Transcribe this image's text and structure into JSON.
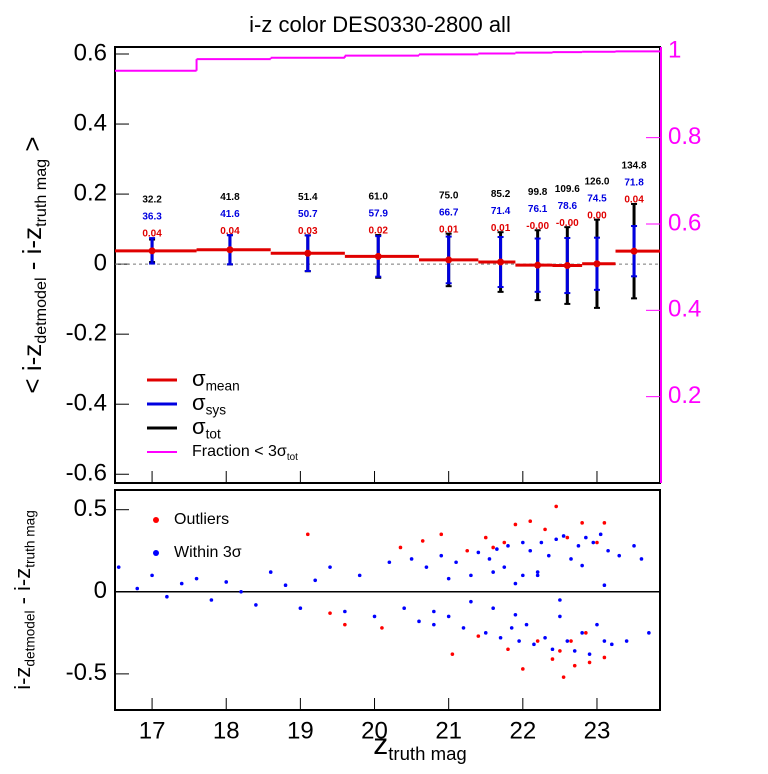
{
  "chart_data": [
    {
      "type": "binned-mean",
      "title": "i-z color DES0330-2800 all",
      "ylabel": [
        {
          "text": "< i-z"
        },
        {
          "text": "detmodel",
          "sub": true
        },
        {
          "text": " - i-z"
        },
        {
          "text": "truth mag",
          "sub": true
        },
        {
          "text": " >"
        }
      ],
      "xlim": [
        16.5,
        23.85
      ],
      "ylim": [
        -0.625,
        0.62
      ],
      "y2lim": [
        0,
        1.01
      ],
      "yticks": [
        {
          "value": 0.6,
          "label": "0.6"
        },
        {
          "value": 0.4,
          "label": "0.4"
        },
        {
          "value": 0.2,
          "label": "0.2"
        },
        0,
        {
          "value": -0.2,
          "label": "-0.2"
        },
        {
          "value": -0.4,
          "label": "-0.4"
        },
        {
          "value": -0.6,
          "label": "-0.6"
        }
      ],
      "y2ticks": [
        0.2,
        0.4,
        0.6,
        0.8,
        1
      ],
      "bin_edges": [
        16.5,
        17.6,
        18.6,
        19.6,
        20.6,
        21.4,
        21.9,
        22.4,
        22.8,
        23.25,
        23.85
      ],
      "x": [
        17.0,
        18.05,
        19.1,
        20.05,
        21.0,
        21.7,
        22.2,
        22.6,
        23.0,
        23.5
      ],
      "values": [
        0.038,
        0.041,
        0.031,
        0.022,
        0.012,
        0.006,
        -0.003,
        -0.004,
        0.001,
        0.037
      ],
      "value_labels": [
        "0.04",
        "0.04",
        "0.03",
        "0.02",
        "0.01",
        "0.01",
        "-0.00",
        "-0.00",
        "0.00",
        "0.04"
      ],
      "sys_errors": [
        0.0363,
        0.0416,
        0.0507,
        0.0579,
        0.0667,
        0.0714,
        0.0761,
        0.0786,
        0.0745,
        0.0718
      ],
      "sys_labels": [
        "36.3",
        "41.6",
        "50.7",
        "57.9",
        "66.7",
        "71.4",
        "76.1",
        "78.6",
        "74.5",
        "71.8"
      ],
      "tot_errors": [
        0.0322,
        0.0418,
        0.0514,
        0.061,
        0.075,
        0.0852,
        0.0998,
        0.1096,
        0.126,
        0.1348
      ],
      "tot_labels": [
        "32.2",
        "41.8",
        "51.4",
        "61.0",
        "75.0",
        "85.2",
        "99.8",
        "109.6",
        "126.0",
        "134.8"
      ],
      "fraction": [
        0.955,
        0.982,
        0.985,
        0.99,
        0.993,
        0.995,
        0.997,
        0.998,
        0.999,
        1.0
      ],
      "colors": {
        "mean": "#e00000",
        "sys": "#0000e0",
        "tot": "#000000",
        "fraction": "#ff00ff"
      },
      "legend": [
        [
          {
            "text": "σ"
          },
          {
            "text": "mean",
            "sub": true
          }
        ],
        [
          {
            "text": "σ"
          },
          {
            "text": "sys",
            "sub": true
          }
        ],
        [
          {
            "text": "σ"
          },
          {
            "text": "tot",
            "sub": true
          }
        ],
        [
          {
            "text": "Fraction < 3σ"
          },
          {
            "text": "tot",
            "sub": true
          }
        ]
      ]
    },
    {
      "type": "scatter",
      "ylabel": [
        {
          "text": "i-z"
        },
        {
          "text": "detmodel",
          "sub": true
        },
        {
          "text": " - i-z"
        },
        {
          "text": "truth mag",
          "sub": true
        }
      ],
      "xlabel": [
        {
          "text": "z"
        },
        {
          "text": "truth mag",
          "sub": true
        }
      ],
      "xlim": [
        16.5,
        23.85
      ],
      "ylim": [
        -0.72,
        0.62
      ],
      "xticks": [
        17,
        18,
        19,
        20,
        21,
        22,
        23
      ],
      "yticks": [
        {
          "value": 0.5,
          "label": "0.5"
        },
        0,
        {
          "value": -0.5,
          "label": "-0.5"
        }
      ],
      "series": [
        {
          "name": "Outliers",
          "color": "#ff0000",
          "x": [
            20.35,
            20.65,
            20.9,
            21.25,
            21.5,
            21.6,
            21.75,
            21.9,
            22.1,
            22.3,
            22.45,
            22.6,
            22.8,
            23.0,
            23.1,
            20.1,
            21.05,
            21.8,
            22.0,
            22.2,
            22.4,
            22.55,
            22.7,
            22.9,
            23.1,
            22.5,
            21.4,
            19.1,
            19.4,
            19.6,
            22.65,
            22.85
          ],
          "values": [
            0.27,
            0.31,
            0.35,
            0.25,
            0.33,
            0.27,
            0.3,
            0.41,
            0.43,
            0.38,
            0.52,
            0.33,
            0.42,
            0.3,
            0.42,
            -0.22,
            -0.38,
            -0.35,
            -0.47,
            -0.3,
            -0.41,
            -0.52,
            -0.45,
            -0.43,
            -0.4,
            -0.36,
            -0.27,
            0.35,
            -0.13,
            -0.2,
            -0.3,
            -0.25
          ]
        },
        {
          "name": "Within 3σ",
          "color": "#0000ff",
          "x": [
            16.55,
            16.8,
            17.0,
            17.2,
            17.4,
            17.6,
            17.8,
            18.0,
            18.2,
            18.4,
            18.6,
            18.8,
            19.0,
            19.2,
            19.4,
            19.6,
            19.8,
            20.0,
            20.2,
            20.4,
            20.5,
            20.6,
            20.7,
            20.8,
            20.9,
            21.0,
            21.1,
            21.2,
            21.3,
            21.4,
            21.5,
            21.55,
            21.6,
            21.65,
            21.7,
            21.75,
            21.8,
            21.85,
            21.9,
            21.95,
            22.0,
            22.05,
            22.1,
            22.15,
            22.2,
            22.25,
            22.3,
            22.35,
            22.4,
            22.45,
            22.5,
            22.55,
            22.6,
            22.65,
            22.7,
            22.75,
            22.8,
            22.85,
            22.9,
            22.95,
            23.0,
            23.05,
            23.1,
            23.15,
            23.2,
            23.3,
            23.4,
            23.5,
            23.6,
            23.7,
            21.0,
            21.3,
            21.6,
            21.9,
            22.2,
            22.5,
            22.8,
            23.1,
            20.8,
            22.0
          ],
          "values": [
            0.15,
            0.02,
            0.1,
            -0.03,
            0.05,
            0.08,
            -0.05,
            0.06,
            0.0,
            -0.08,
            0.12,
            0.04,
            -0.1,
            0.07,
            0.15,
            -0.12,
            0.1,
            -0.15,
            0.18,
            -0.1,
            0.2,
            -0.18,
            0.15,
            -0.2,
            0.22,
            -0.15,
            0.18,
            -0.22,
            0.1,
            0.24,
            -0.25,
            0.2,
            -0.1,
            0.26,
            -0.28,
            0.15,
            0.28,
            -0.22,
            0.05,
            -0.3,
            0.3,
            -0.2,
            0.25,
            -0.32,
            0.12,
            0.3,
            -0.28,
            0.22,
            -0.35,
            0.32,
            -0.15,
            0.34,
            -0.3,
            0.2,
            -0.36,
            0.28,
            -0.25,
            0.33,
            -0.38,
            0.3,
            -0.2,
            0.35,
            -0.3,
            0.25,
            -0.32,
            0.22,
            -0.3,
            0.28,
            0.2,
            -0.25,
            0.08,
            -0.06,
            0.12,
            -0.14,
            0.1,
            -0.05,
            0.16,
            0.04,
            -0.12,
            0.1
          ]
        }
      ]
    }
  ]
}
